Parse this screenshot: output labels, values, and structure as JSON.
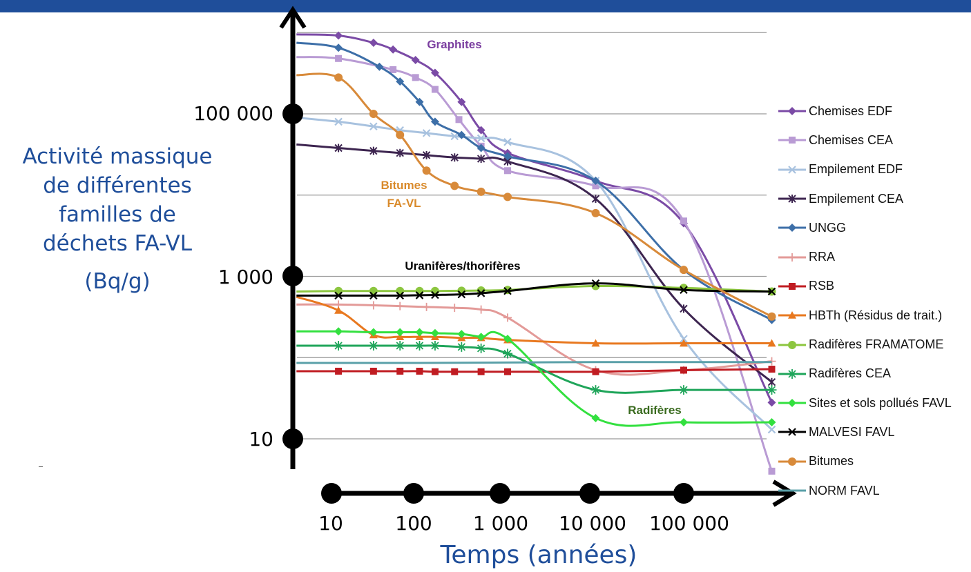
{
  "y_axis": {
    "label_lines": [
      "Activité massique",
      "de différentes",
      "familles de",
      "déchets FA-VL"
    ],
    "unit": "(Bq/g)",
    "ticks": [
      {
        "label": "100 000",
        "value": 100000
      },
      {
        "label": "1 000",
        "value": 1000
      },
      {
        "label": "10",
        "value": 10
      }
    ]
  },
  "x_axis": {
    "label": "Temps (années)",
    "ticks": [
      {
        "label": "10",
        "value": 10
      },
      {
        "label": "100",
        "value": 100
      },
      {
        "label": "1 000",
        "value": 1000
      },
      {
        "label": "10 000",
        "value": 10000
      },
      {
        "label": "100 000",
        "value": 100000
      }
    ]
  },
  "annotations": [
    {
      "text": "Graphites",
      "color": "#7b3fa0"
    },
    {
      "text": "Bitumes\nFA-VL",
      "color": "#d98a2b"
    },
    {
      "text": "Uranifères/thorifères",
      "color": "#000000"
    },
    {
      "text": "Radifères",
      "color": "#3a6b1f"
    }
  ],
  "chart_data": {
    "type": "line",
    "x_scale": "log",
    "y_scale": "log",
    "xlabel": "Temps (années)",
    "ylabel": "Activité massique de différentes familles de déchets FA-VL (Bq/g)",
    "xlim": [
      4,
      1000000
    ],
    "ylim": [
      6,
      2000000
    ],
    "grid": true,
    "legend_position": "right",
    "series": [
      {
        "name": "Chemises EDF",
        "color": "#7b4ba6",
        "marker": "diamond",
        "x": [
          4,
          12,
          30,
          50,
          90,
          150,
          300,
          500,
          1000,
          10000,
          100000,
          1000000
        ],
        "y": [
          950000,
          920000,
          750000,
          620000,
          460000,
          320000,
          140000,
          63000,
          33000,
          15000,
          4500,
          28
        ]
      },
      {
        "name": "Chemises CEA",
        "color": "#b99bd4",
        "marker": "square",
        "x": [
          4,
          12,
          50,
          90,
          150,
          280,
          500,
          1000,
          10000,
          100000,
          1000000
        ],
        "y": [
          500000,
          480000,
          350000,
          280000,
          200000,
          85000,
          40000,
          20000,
          13000,
          4800,
          4
        ]
      },
      {
        "name": "Empilement EDF",
        "color": "#a8c2df",
        "marker": "x",
        "x": [
          4,
          12,
          30,
          60,
          120,
          250,
          500,
          1000,
          10000,
          100000,
          1000000
        ],
        "y": [
          90000,
          80000,
          70000,
          63000,
          58000,
          53000,
          50000,
          45000,
          15000,
          170,
          13
        ]
      },
      {
        "name": "Empilement CEA",
        "color": "#3d2550",
        "marker": "star",
        "x": [
          4,
          12,
          30,
          60,
          120,
          250,
          500,
          1000,
          10000,
          100000,
          1000000
        ],
        "y": [
          42000,
          38000,
          35000,
          33000,
          31000,
          29000,
          28000,
          26000,
          9000,
          400,
          50
        ]
      },
      {
        "name": "UNGG",
        "color": "#3d6fa8",
        "marker": "diamond",
        "x": [
          4,
          12,
          35,
          60,
          100,
          150,
          300,
          500,
          1000,
          10000,
          100000,
          1000000
        ],
        "y": [
          750000,
          650000,
          380000,
          250000,
          140000,
          80000,
          55000,
          38000,
          30000,
          15000,
          1200,
          290
        ]
      },
      {
        "name": "RRA",
        "color": "#e39a98",
        "marker": "plus",
        "x": [
          4,
          12,
          30,
          60,
          120,
          250,
          500,
          1000,
          10000,
          100000,
          1000000
        ],
        "y": [
          450,
          450,
          440,
          430,
          420,
          410,
          390,
          310,
          70,
          70,
          90
        ]
      },
      {
        "name": "RSB",
        "color": "#c01c22",
        "marker": "square",
        "x": [
          4,
          12,
          30,
          60,
          100,
          150,
          250,
          500,
          1000,
          10000,
          100000,
          1000000
        ],
        "y": [
          68,
          68,
          68,
          68,
          68,
          67,
          67,
          67,
          67,
          67,
          70,
          72
        ]
      },
      {
        "name": "HBTh (Résidus de trait.)",
        "color": "#e8781f",
        "marker": "triangle",
        "x": [
          4,
          12,
          30,
          60,
          100,
          150,
          300,
          500,
          1000,
          10000,
          100000,
          1000000
        ],
        "y": [
          560,
          380,
          190,
          180,
          180,
          180,
          175,
          175,
          165,
          150,
          150,
          150
        ]
      },
      {
        "name": "Radifères FRAMATOME",
        "color": "#8cc63f",
        "marker": "circle",
        "x": [
          4,
          12,
          30,
          60,
          100,
          150,
          300,
          500,
          1000,
          10000,
          100000,
          1000000
        ],
        "y": [
          650,
          660,
          660,
          660,
          660,
          660,
          665,
          670,
          680,
          760,
          720,
          650
        ]
      },
      {
        "name": "Radifères CEA",
        "color": "#1fa55a",
        "marker": "asterisk",
        "x": [
          4,
          12,
          30,
          60,
          100,
          150,
          300,
          500,
          1000,
          10000,
          100000,
          1000000
        ],
        "y": [
          140,
          140,
          140,
          140,
          140,
          140,
          135,
          130,
          112,
          40,
          40,
          40
        ]
      },
      {
        "name": "Sites et sols pollués FAVL",
        "color": "#33e03f",
        "marker": "diamond",
        "x": [
          4,
          12,
          30,
          60,
          100,
          150,
          300,
          500,
          1000,
          10000,
          100000,
          1000000
        ],
        "y": [
          210,
          210,
          205,
          205,
          205,
          200,
          195,
          180,
          170,
          18,
          16,
          16
        ]
      },
      {
        "name": "MALVESI FAVL",
        "color": "#000000",
        "marker": "x",
        "x": [
          4,
          12,
          30,
          60,
          100,
          150,
          300,
          500,
          1000,
          10000,
          100000,
          1000000
        ],
        "y": [
          580,
          580,
          580,
          580,
          585,
          590,
          600,
          620,
          660,
          820,
          680,
          650
        ]
      },
      {
        "name": "Bitumes",
        "color": "#d88a3a",
        "marker": "circle",
        "x": [
          4,
          12,
          30,
          60,
          120,
          250,
          500,
          1000,
          10000,
          100000,
          1000000
        ],
        "y": [
          300000,
          280000,
          100000,
          55000,
          20000,
          13000,
          11000,
          9500,
          6000,
          1200,
          320
        ]
      },
      {
        "name": "NORM FAVL",
        "color": "#5aa0a8",
        "marker": "none",
        "x": [
          4,
          12,
          100,
          1000,
          10000,
          100000,
          1000000
        ],
        "y": [
          86,
          86,
          86,
          87,
          88,
          88,
          88
        ]
      }
    ]
  }
}
